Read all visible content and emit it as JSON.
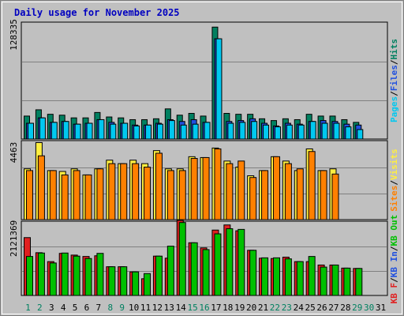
{
  "chart_data": [
    {
      "type": "bar",
      "title": "Daily usage for November 2025",
      "panel": "hits-files-pages",
      "ytick": "128335",
      "ymax": 128335,
      "legend": [
        {
          "label": "Pages",
          "color": "#00c8f0"
        },
        {
          "label": "Files",
          "color": "#2050e0"
        },
        {
          "label": "Hits",
          "color": "#008060"
        }
      ],
      "series": [
        {
          "name": "Hits",
          "values": [
            26000,
            33000,
            28000,
            27000,
            24000,
            24000,
            30000,
            25000,
            24000,
            22000,
            22000,
            23000,
            34000,
            27000,
            29000,
            26000,
            125000,
            29000,
            28000,
            28000,
            23000,
            21000,
            23000,
            22000,
            28000,
            26000,
            26000,
            22000,
            19000,
            0
          ]
        },
        {
          "name": "Files",
          "values": [
            18000,
            24000,
            19000,
            20000,
            17000,
            18000,
            22000,
            19000,
            18000,
            16000,
            16000,
            18000,
            22000,
            20000,
            22000,
            19000,
            112000,
            20000,
            21000,
            23000,
            18000,
            15000,
            18000,
            17000,
            20000,
            21000,
            20000,
            17000,
            16000,
            0
          ]
        },
        {
          "name": "Pages",
          "values": [
            18000,
            24000,
            19000,
            20000,
            17000,
            18000,
            22000,
            17000,
            18000,
            15000,
            16000,
            17000,
            21000,
            16000,
            17000,
            19000,
            112000,
            18000,
            19000,
            20000,
            16000,
            14000,
            16000,
            16000,
            20000,
            18000,
            18000,
            14000,
            11000,
            0
          ]
        }
      ]
    },
    {
      "type": "bar",
      "panel": "visits-sites",
      "ytick": "4463",
      "ymax": 4463,
      "legend": [
        {
          "label": "Sites",
          "color": "#ff8000"
        },
        {
          "label": "Visits",
          "color": "#ffee40"
        }
      ],
      "series": [
        {
          "name": "Visits",
          "values": [
            2950,
            4463,
            2850,
            2800,
            2950,
            2600,
            2950,
            3450,
            3250,
            3450,
            3250,
            4000,
            2950,
            2950,
            3650,
            3600,
            4150,
            3400,
            3050,
            2550,
            2850,
            3650,
            3400,
            2850,
            4100,
            2850,
            2950,
            0,
            0,
            0
          ]
        },
        {
          "name": "Sites",
          "values": [
            2850,
            3700,
            2850,
            2600,
            2850,
            2600,
            2950,
            3250,
            3250,
            3250,
            3050,
            3850,
            2850,
            2850,
            3550,
            3600,
            4100,
            3250,
            3400,
            2450,
            2850,
            3650,
            3250,
            2950,
            3950,
            2850,
            2650,
            0,
            0,
            0
          ]
        }
      ]
    },
    {
      "type": "bar",
      "panel": "kb",
      "ytick": "2121369",
      "ymax": 2121369,
      "legend": [
        {
          "label": "KB F",
          "color": "#e02020"
        },
        {
          "label": "KB In",
          "color": "#2050e0"
        },
        {
          "label": "KB Out",
          "color": "#00c000"
        }
      ],
      "series": [
        {
          "name": "KB F",
          "values": [
            1700000,
            1260000,
            1000000,
            1240000,
            1190000,
            1150000,
            1170000,
            850000,
            850000,
            700000,
            500000,
            1160000,
            1100000,
            2200000,
            1550000,
            1400000,
            1920000,
            2070000,
            1900000,
            1330000,
            1100000,
            1090000,
            1130000,
            1000000,
            1000000,
            900000,
            900000,
            810000,
            800000,
            0
          ]
        },
        {
          "name": "KB Out",
          "values": [
            1150000,
            1250000,
            960000,
            1250000,
            1160000,
            1090000,
            1240000,
            850000,
            850000,
            700000,
            650000,
            1160000,
            1450000,
            2140000,
            1550000,
            1350000,
            1810000,
            1960000,
            1940000,
            1330000,
            1110000,
            1110000,
            1080000,
            1000000,
            1150000,
            840000,
            900000,
            810000,
            800000,
            0
          ]
        }
      ]
    }
  ],
  "x_labels": [
    {
      "day": "1",
      "color": "#008060"
    },
    {
      "day": "2",
      "color": "#008060"
    },
    {
      "day": "3",
      "color": "#000000"
    },
    {
      "day": "4",
      "color": "#000000"
    },
    {
      "day": "5",
      "color": "#000000"
    },
    {
      "day": "6",
      "color": "#000000"
    },
    {
      "day": "7",
      "color": "#000000"
    },
    {
      "day": "8",
      "color": "#008060"
    },
    {
      "day": "9",
      "color": "#008060"
    },
    {
      "day": "10",
      "color": "#000000"
    },
    {
      "day": "11",
      "color": "#000000"
    },
    {
      "day": "12",
      "color": "#000000"
    },
    {
      "day": "13",
      "color": "#000000"
    },
    {
      "day": "14",
      "color": "#000000"
    },
    {
      "day": "15",
      "color": "#008060"
    },
    {
      "day": "16",
      "color": "#008060"
    },
    {
      "day": "17",
      "color": "#000000"
    },
    {
      "day": "18",
      "color": "#000000"
    },
    {
      "day": "19",
      "color": "#000000"
    },
    {
      "day": "20",
      "color": "#000000"
    },
    {
      "day": "21",
      "color": "#000000"
    },
    {
      "day": "22",
      "color": "#008060"
    },
    {
      "day": "23",
      "color": "#008060"
    },
    {
      "day": "24",
      "color": "#000000"
    },
    {
      "day": "25",
      "color": "#000000"
    },
    {
      "day": "26",
      "color": "#000000"
    },
    {
      "day": "27",
      "color": "#000000"
    },
    {
      "day": "28",
      "color": "#000000"
    },
    {
      "day": "29",
      "color": "#008060"
    },
    {
      "day": "30",
      "color": "#008060"
    },
    {
      "day": "31",
      "color": "#000000"
    }
  ],
  "colors": {
    "background": "#c0c0c0",
    "frame": "#000000",
    "title": "#0000c0",
    "hits_file_outline": "#000000",
    "kb_in": "#2050e0"
  }
}
